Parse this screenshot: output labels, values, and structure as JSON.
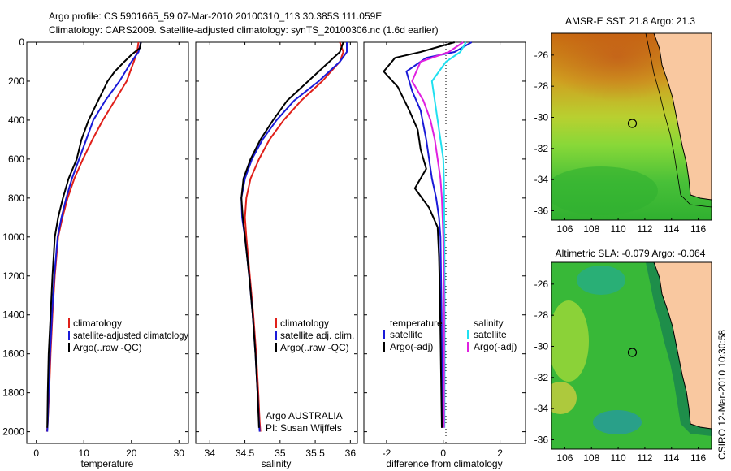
{
  "header": {
    "line1": "Argo profile: CS 5901665_59 07-Mar-2010 20100310_113 30.385S 111.059E",
    "line2": "Climatology: CARS2009. Satellite-adjusted climatology: synTS_20100306.nc (1.6d earlier)"
  },
  "side_credit": "CSIRO 12-Mar-2010 10:30:58",
  "colors": {
    "climatology": "#e0201a",
    "satellite": "#1a1ad8",
    "argo": "#000000",
    "satellite_salt": "#20e0f0",
    "argo_salt": "#e020e0",
    "land": "#f9c8a0"
  },
  "chart_data": [
    {
      "id": "temperature",
      "type": "line",
      "xlabel": "temperature",
      "ylabel": "",
      "xlim": [
        -2,
        32
      ],
      "ylim": [
        2060,
        0
      ],
      "xticks": [
        0,
        10,
        20,
        30
      ],
      "yticks": [
        0,
        200,
        400,
        600,
        800,
        1000,
        1200,
        1400,
        1600,
        1800,
        2000
      ],
      "legend": [
        "climatology",
        "satellite-adjusted climatology",
        "Argo(..raw -QC)"
      ],
      "series": [
        {
          "name": "climatology",
          "color": "#e0201a",
          "x": [
            21.5,
            21.2,
            20.5,
            19.0,
            16.5,
            14.0,
            11.8,
            9.8,
            8.0,
            6.6,
            5.5,
            4.6,
            3.9,
            3.4,
            3.0,
            2.7,
            2.4,
            2.25
          ],
          "y": [
            0,
            50,
            100,
            200,
            300,
            400,
            500,
            600,
            700,
            800,
            900,
            1000,
            1200,
            1400,
            1600,
            1800,
            1950,
            2000
          ]
        },
        {
          "name": "satellite-adjusted climatology",
          "color": "#1a1ad8",
          "x": [
            22.0,
            21.5,
            20.0,
            17.5,
            14.5,
            12.0,
            10.5,
            9.0,
            7.5,
            6.3,
            5.3,
            4.5,
            3.8,
            3.3,
            2.9,
            2.6,
            2.4,
            2.3
          ],
          "y": [
            0,
            50,
            100,
            200,
            300,
            400,
            500,
            600,
            700,
            800,
            900,
            1000,
            1200,
            1400,
            1600,
            1800,
            1950,
            2000
          ]
        },
        {
          "name": "Argo(..raw -QC)",
          "color": "#000000",
          "x": [
            22.0,
            21.8,
            20.2,
            18.5,
            16.5,
            15.0,
            13.0,
            11.0,
            9.5,
            8.5,
            6.8,
            5.6,
            4.6,
            3.9,
            3.4,
            3.0,
            2.6,
            2.4,
            2.3
          ],
          "y": [
            0,
            30,
            60,
            100,
            150,
            200,
            300,
            400,
            500,
            600,
            700,
            800,
            900,
            1000,
            1200,
            1400,
            1600,
            1800,
            1980
          ]
        }
      ]
    },
    {
      "id": "salinity",
      "type": "line",
      "xlabel": "salinity",
      "ylabel": "",
      "xlim": [
        33.8,
        36.1
      ],
      "ylim": [
        2060,
        0
      ],
      "xticks": [
        34,
        34.5,
        35,
        35.5,
        36
      ],
      "yticks": [
        0,
        200,
        400,
        600,
        800,
        1000,
        1200,
        1400,
        1600,
        1800,
        2000
      ],
      "legend": [
        "climatology",
        "satellite adj. clim.",
        "Argo(..raw -QC)"
      ],
      "annotation": [
        "Argo AUSTRALIA",
        "PI: Susan Wijffels"
      ],
      "series": [
        {
          "name": "climatology",
          "color": "#e0201a",
          "x": [
            35.85,
            35.9,
            35.85,
            35.6,
            35.3,
            35.05,
            34.85,
            34.7,
            34.58,
            34.52,
            34.5,
            34.52,
            34.57,
            34.62,
            34.66,
            34.69,
            34.71,
            34.72
          ],
          "y": [
            0,
            50,
            100,
            200,
            300,
            400,
            500,
            600,
            700,
            800,
            900,
            1000,
            1200,
            1400,
            1600,
            1800,
            1950,
            2000
          ]
        },
        {
          "name": "satellite adj. clim.",
          "color": "#1a1ad8",
          "x": [
            35.95,
            35.95,
            35.85,
            35.55,
            35.2,
            34.95,
            34.75,
            34.6,
            34.5,
            34.45,
            34.46,
            34.5,
            34.56,
            34.61,
            34.65,
            34.68,
            34.7,
            34.71
          ],
          "y": [
            0,
            50,
            100,
            200,
            300,
            400,
            500,
            600,
            700,
            800,
            900,
            1000,
            1200,
            1400,
            1600,
            1800,
            1950,
            2000
          ]
        },
        {
          "name": "Argo(..raw -QC)",
          "color": "#000000",
          "x": [
            35.9,
            35.85,
            35.7,
            35.4,
            35.1,
            34.9,
            34.72,
            34.58,
            34.48,
            34.45,
            34.47,
            34.5,
            34.56,
            34.61,
            34.65,
            34.68,
            34.7
          ],
          "y": [
            0,
            50,
            100,
            200,
            300,
            400,
            500,
            600,
            700,
            800,
            900,
            1000,
            1200,
            1400,
            1600,
            1800,
            1980
          ]
        }
      ]
    },
    {
      "id": "difference",
      "type": "line",
      "xlabel": "difference from climatology",
      "ylabel": "",
      "xlim": [
        -2.8,
        2.9
      ],
      "ylim": [
        2060,
        0
      ],
      "xticks": [
        -2,
        0,
        2
      ],
      "yticks": [
        0,
        200,
        400,
        600,
        800,
        1000,
        1200,
        1400,
        1600,
        1800,
        2000
      ],
      "legend_left_title": "temperature",
      "legend_right_title": "salinity",
      "legend": [
        "satellite",
        "Argo(-adj)",
        "satellite",
        "Argo(-adj)"
      ],
      "series": [
        {
          "name": "satellite",
          "group": "temperature",
          "color": "#1a1ad8",
          "x": [
            1.0,
            0.4,
            -0.6,
            -1.3,
            -1.1,
            -0.8,
            -0.6,
            -0.5,
            -0.4,
            -0.25,
            -0.15,
            -0.1,
            -0.08,
            -0.06,
            -0.05,
            -0.04
          ],
          "y": [
            0,
            50,
            80,
            150,
            250,
            350,
            500,
            600,
            700,
            800,
            900,
            1000,
            1200,
            1400,
            1600,
            1980
          ]
        },
        {
          "name": "Argo(-adj)",
          "group": "temperature",
          "color": "#000000",
          "x": [
            0.4,
            -0.8,
            -1.7,
            -2.1,
            -1.6,
            -1.2,
            -0.9,
            -0.8,
            -0.6,
            -1.0,
            -0.5,
            -0.2,
            -0.15,
            -0.12,
            -0.1,
            -0.08,
            -0.05
          ],
          "y": [
            0,
            50,
            80,
            150,
            230,
            350,
            450,
            550,
            650,
            750,
            850,
            950,
            1100,
            1300,
            1500,
            1700,
            1980
          ]
        },
        {
          "name": "satellite",
          "group": "salinity",
          "color": "#20e0f0",
          "x": [
            0.8,
            0.6,
            0.1,
            -0.4,
            -0.3,
            -0.2,
            -0.1,
            0.0,
            0.02,
            0.03,
            0.04,
            0.05,
            0.05,
            0.04
          ],
          "y": [
            0,
            50,
            100,
            200,
            300,
            400,
            500,
            600,
            700,
            800,
            1000,
            1300,
            1600,
            1980
          ]
        },
        {
          "name": "Argo(-adj)",
          "group": "salinity",
          "color": "#e020e0",
          "x": [
            0.7,
            0.2,
            -0.8,
            -1.1,
            -0.7,
            -0.45,
            -0.3,
            -0.2,
            -0.1,
            -0.05,
            0.0,
            0.03,
            0.02
          ],
          "y": [
            0,
            50,
            100,
            200,
            300,
            400,
            500,
            600,
            700,
            800,
            1000,
            1400,
            1980
          ]
        }
      ]
    }
  ],
  "maps": [
    {
      "id": "sst-map",
      "title": "AMSR-E SST: 21.8 Argo: 21.3",
      "xlim": [
        105,
        117
      ],
      "ylim": [
        -36.6,
        -24.6
      ],
      "xticks": [
        106,
        108,
        110,
        112,
        114,
        116
      ],
      "yticks": [
        -26,
        -28,
        -30,
        -32,
        -34,
        -36
      ],
      "marker": {
        "lon": 111.06,
        "lat": -30.39
      }
    },
    {
      "id": "sla-map",
      "title": "Altimetric SLA: -0.079 Argo: -0.064",
      "xlim": [
        105,
        117
      ],
      "ylim": [
        -36.6,
        -24.6
      ],
      "xticks": [
        106,
        108,
        110,
        112,
        114,
        116
      ],
      "yticks": [
        -26,
        -28,
        -30,
        -32,
        -34,
        -36
      ],
      "marker": {
        "lon": 111.06,
        "lat": -30.39
      }
    }
  ]
}
